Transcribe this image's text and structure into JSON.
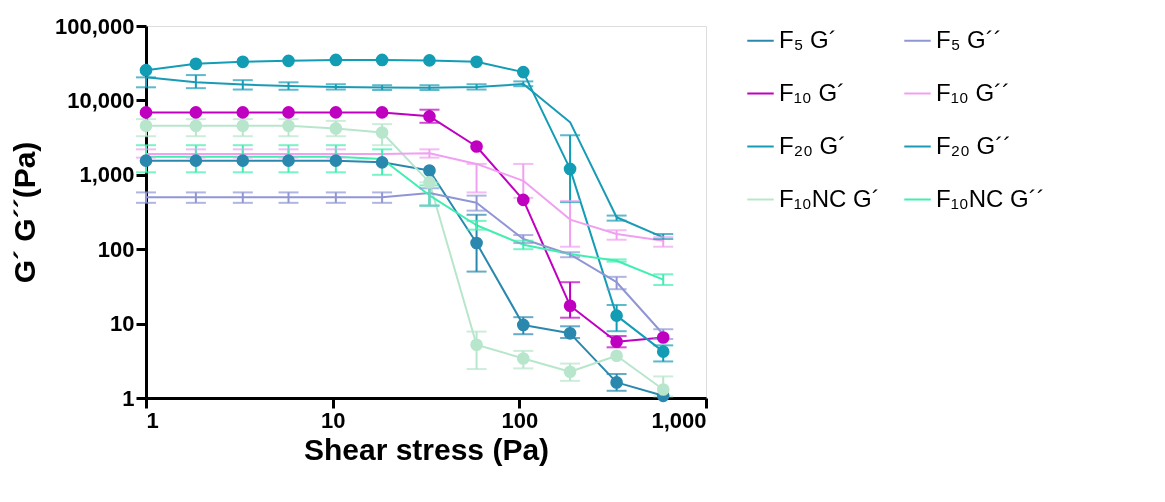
{
  "chart_data": {
    "type": "line",
    "xlabel": "Shear stress (Pa)",
    "ylabel": "G´ G´´(Pa)",
    "log": "xy",
    "grid": false,
    "legend": "right",
    "line_style": "solid",
    "xlim": [
      1,
      1000
    ],
    "xticks": [
      1,
      10,
      100,
      {
        "value": 1000,
        "label": "1,000"
      }
    ],
    "ylim": [
      1,
      100000
    ],
    "yticks": [
      1,
      10,
      100,
      {
        "value": 1000,
        "label": "1,000"
      },
      {
        "value": 10000,
        "label": "10,000"
      },
      {
        "value": 100000,
        "label": "100,000"
      }
    ],
    "x": [
      1,
      1.85,
      3.3,
      5.8,
      10.4,
      18.4,
      33,
      59,
      105,
      187,
      332,
      590
    ],
    "series": [
      {
        "name": "F₅ G´",
        "color": "#2a88ae",
        "marker": "circle",
        "values": [
          1550,
          1550,
          1550,
          1550,
          1550,
          1470,
          1140,
          121,
          9.6,
          7.4,
          1.62,
          1.07
        ],
        "errors": [
          null,
          null,
          null,
          null,
          null,
          null,
          null,
          [
            50,
            290
          ],
          [
            7.2,
            12.2
          ],
          [
            6.4,
            9.2
          ],
          [
            1.25,
            2.1
          ],
          null
        ]
      },
      {
        "name": "F₁₀ G´",
        "color": "#c000c0",
        "marker": "circle",
        "values": [
          6900,
          6900,
          6900,
          6900,
          6900,
          6900,
          6100,
          2400,
          460,
          17.4,
          5.7,
          6.5
        ],
        "errors": [
          null,
          null,
          null,
          null,
          null,
          null,
          [
            5000,
            7500
          ],
          null,
          null,
          [
            12,
            36
          ],
          [
            4.8,
            6.8
          ],
          null
        ]
      },
      {
        "name": "F₂₀ G´",
        "color": "#129db5",
        "marker": "circle",
        "values": [
          25500,
          31000,
          33000,
          34000,
          35000,
          35000,
          34500,
          33000,
          24000,
          1200,
          12.8,
          4.2
        ],
        "errors": [
          null,
          null,
          null,
          null,
          null,
          null,
          null,
          null,
          null,
          [
            430,
            3400
          ],
          [
            7.9,
            17.8
          ],
          [
            3.1,
            5.1
          ]
        ]
      },
      {
        "name": "F₁₀NC G´",
        "color": "#b8e6cc",
        "marker": "circle",
        "values": [
          4570,
          4570,
          4570,
          4570,
          4200,
          3700,
          790,
          5.2,
          3.4,
          2.25,
          3.7,
          1.3
        ],
        "errors": [
          [
            3300,
            5600
          ],
          [
            3300,
            5600
          ],
          [
            3300,
            5600
          ],
          [
            3300,
            5600
          ],
          [
            3300,
            5300
          ],
          [
            2500,
            4800
          ],
          [
            385,
            790
          ],
          [
            2.45,
            7.8
          ],
          [
            2.5,
            4.3
          ],
          [
            1.7,
            2.9
          ],
          null,
          [
            1.05,
            1.95
          ]
        ]
      },
      {
        "name": "F₅ G´´",
        "color": "#9096d4",
        "marker": "none",
        "values": [
          500,
          500,
          500,
          500,
          500,
          500,
          570,
          420,
          137,
          85,
          36,
          7.2
        ],
        "errors": [
          [
            420,
            580
          ],
          [
            420,
            580
          ],
          [
            420,
            580
          ],
          [
            420,
            580
          ],
          [
            420,
            580
          ],
          [
            420,
            580
          ],
          [
            385,
            660
          ],
          [
            330,
            525
          ],
          [
            121,
            155
          ],
          [
            78,
            91
          ],
          [
            29,
            42.5
          ],
          [
            6.2,
            8.4
          ]
        ]
      },
      {
        "name": "F₁₀ G´´",
        "color": "#f0a0f0",
        "marker": "none",
        "values": [
          1900,
          1900,
          1900,
          1900,
          1900,
          1900,
          1950,
          1400,
          830,
          250,
          160,
          130
        ],
        "errors": [
          [
            1700,
            2200
          ],
          [
            1700,
            2200
          ],
          [
            1700,
            2200
          ],
          [
            1700,
            2200
          ],
          [
            1700,
            2200
          ],
          null,
          [
            1700,
            2200
          ],
          [
            580,
            1400
          ],
          [
            490,
            1400
          ],
          [
            108,
            445
          ],
          [
            134,
            180
          ],
          [
            108,
            145
          ]
        ]
      },
      {
        "name": "F₂₀ G´´",
        "color": "#1a9bb5",
        "marker": "none",
        "values": [
          20400,
          17500,
          16300,
          15600,
          15100,
          14900,
          14800,
          15100,
          16600,
          5100,
          269,
          144
        ],
        "errors": [
          [
            15000,
            20400
          ],
          [
            14600,
            21900
          ],
          [
            14000,
            18700
          ],
          [
            13900,
            17500
          ],
          [
            14000,
            16500
          ],
          [
            13800,
            16000
          ],
          [
            13800,
            16000
          ],
          [
            14000,
            16500
          ],
          [
            15500,
            18000
          ],
          null,
          [
            242,
            283
          ],
          [
            137,
            160
          ]
        ]
      },
      {
        "name": "F₁₀NC G´´",
        "color": "#40eeb0",
        "marker": "none",
        "values": [
          1750,
          1750,
          1750,
          1750,
          1750,
          1630,
          530,
          210,
          115,
          86,
          70,
          39
        ],
        "errors": [
          [
            1080,
            2500
          ],
          [
            1080,
            2500
          ],
          [
            1080,
            2500
          ],
          [
            1080,
            2500
          ],
          [
            1080,
            2500
          ],
          [
            1000,
            2200
          ],
          [
            385,
            720
          ],
          [
            183,
            240
          ],
          [
            100,
            130
          ],
          null,
          [
            68,
            73
          ],
          [
            33,
            46
          ]
        ]
      }
    ]
  }
}
